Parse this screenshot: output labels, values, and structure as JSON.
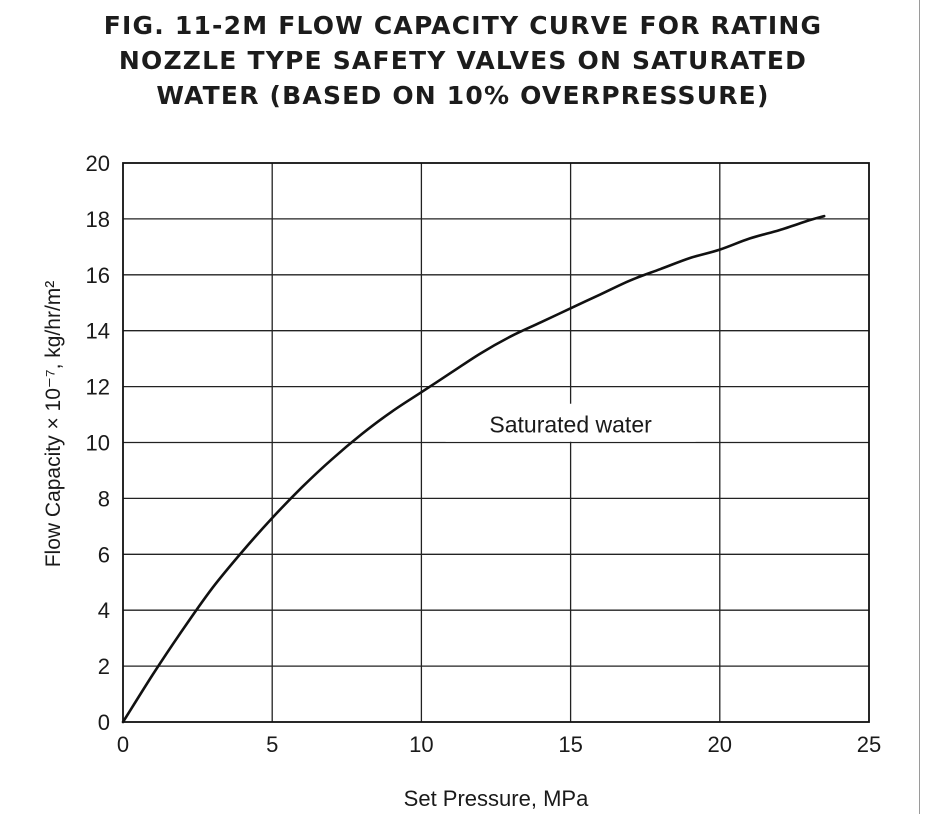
{
  "figure": {
    "title_lines": [
      "FIG. 11-2M   FLOW CAPACITY CURVE FOR RATING",
      "NOZZLE TYPE SAFETY VALVES ON SATURATED",
      "WATER (BASED ON 10% OVERPRESSURE)"
    ]
  },
  "chart_data": {
    "type": "line",
    "title": "FIG. 11-2M FLOW CAPACITY CURVE FOR RATING NOZZLE TYPE SAFETY VALVES ON SATURATED WATER (BASED ON 10% OVERPRESSURE)",
    "xlabel": "Set Pressure, MPa",
    "ylabel": "Flow Capacity × 10⁻⁷, kg/hr/m²",
    "xlim": [
      0,
      25
    ],
    "ylim": [
      0,
      20
    ],
    "xticks": [
      "0",
      "5",
      "10",
      "15",
      "20",
      "25"
    ],
    "yticks": [
      "0",
      "2",
      "4",
      "6",
      "8",
      "10",
      "12",
      "14",
      "16",
      "18",
      "20"
    ],
    "grid": true,
    "series": [
      {
        "name": "Saturated water",
        "color": "#111111",
        "x": [
          0,
          1,
          2,
          3,
          4,
          5,
          6,
          7,
          8,
          9,
          10,
          11,
          12,
          13,
          14,
          15,
          16,
          17,
          18,
          19,
          20,
          21,
          22,
          23,
          23.5
        ],
        "y": [
          0,
          1.7,
          3.3,
          4.8,
          6.1,
          7.3,
          8.4,
          9.4,
          10.3,
          11.1,
          11.8,
          12.5,
          13.2,
          13.8,
          14.3,
          14.8,
          15.3,
          15.8,
          16.2,
          16.6,
          16.9,
          17.3,
          17.6,
          17.95,
          18.1
        ]
      }
    ],
    "annotations": [
      {
        "text": "Saturated water",
        "x": 15,
        "y": 10.6
      }
    ]
  }
}
